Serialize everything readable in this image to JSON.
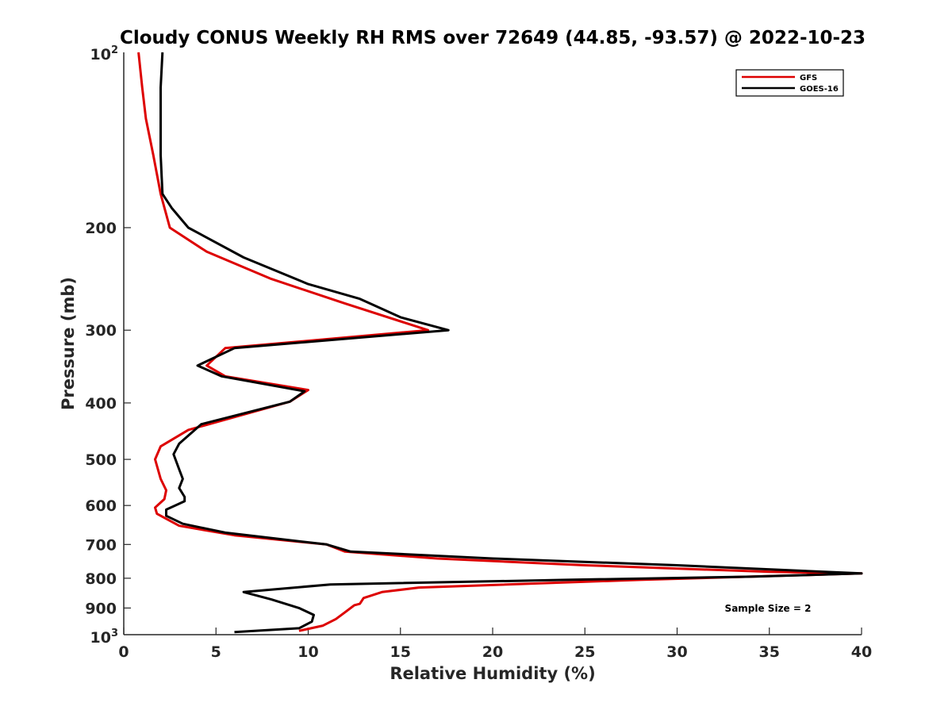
{
  "chart_data": {
    "type": "line",
    "title": "Cloudy CONUS Weekly RH RMS over 72649 (44.85, -93.57) @ 2022-10-23",
    "xlabel": "Relative Humidity (%)",
    "ylabel": "Pressure (mb)",
    "xlim": [
      0,
      40
    ],
    "ylim": [
      100,
      1000
    ],
    "y_scale": "log",
    "y_reversed": true,
    "x_ticks": [
      0,
      5,
      10,
      15,
      20,
      25,
      30,
      35,
      40
    ],
    "x_tick_labels": [
      "0",
      "5",
      "10",
      "15",
      "20",
      "25",
      "30",
      "35",
      "40"
    ],
    "y_ticks": [
      200,
      300,
      400,
      500,
      600,
      700,
      800,
      900
    ],
    "y_tick_labels": [
      "200",
      "300",
      "400",
      "500",
      "600",
      "700",
      "800",
      "900"
    ],
    "y_top_label": {
      "base": "10",
      "exp": "2"
    },
    "y_bottom_label": {
      "base": "10",
      "exp": "3"
    },
    "grid": false,
    "legend_position": "top-right",
    "annotation": "Sample Size = 2",
    "series": [
      {
        "name": "GFS",
        "color": "#dd0000",
        "points": [
          [
            0.8,
            100
          ],
          [
            1.0,
            115
          ],
          [
            1.2,
            130
          ],
          [
            1.6,
            150
          ],
          [
            2.0,
            175
          ],
          [
            2.5,
            200
          ],
          [
            4.5,
            220
          ],
          [
            8.0,
            245
          ],
          [
            12.0,
            270
          ],
          [
            16.5,
            300
          ],
          [
            5.5,
            322
          ],
          [
            4.5,
            345
          ],
          [
            5.5,
            360
          ],
          [
            10.0,
            380
          ],
          [
            9.0,
            398
          ],
          [
            3.5,
            445
          ],
          [
            2.0,
            475
          ],
          [
            1.7,
            500
          ],
          [
            2.0,
            540
          ],
          [
            2.3,
            565
          ],
          [
            2.2,
            585
          ],
          [
            1.7,
            605
          ],
          [
            1.8,
            620
          ],
          [
            3.0,
            650
          ],
          [
            6.0,
            675
          ],
          [
            11.0,
            700
          ],
          [
            12.0,
            720
          ],
          [
            17.0,
            740
          ],
          [
            25.0,
            760
          ],
          [
            35.0,
            780
          ],
          [
            40.0,
            785
          ],
          [
            28.0,
            805
          ],
          [
            16.0,
            830
          ],
          [
            14.0,
            845
          ],
          [
            13.0,
            865
          ],
          [
            12.8,
            885
          ],
          [
            12.5,
            890
          ],
          [
            12.0,
            915
          ],
          [
            11.5,
            940
          ],
          [
            10.8,
            965
          ],
          [
            9.5,
            985
          ]
        ]
      },
      {
        "name": "GOES-16",
        "color": "#000000",
        "points": [
          [
            2.1,
            100
          ],
          [
            2.0,
            115
          ],
          [
            2.0,
            130
          ],
          [
            2.0,
            150
          ],
          [
            2.1,
            175
          ],
          [
            2.6,
            185
          ],
          [
            3.5,
            200
          ],
          [
            6.5,
            225
          ],
          [
            10.0,
            250
          ],
          [
            12.8,
            265
          ],
          [
            15.0,
            285
          ],
          [
            17.6,
            300
          ],
          [
            6.0,
            322
          ],
          [
            4.0,
            345
          ],
          [
            5.3,
            360
          ],
          [
            9.8,
            382
          ],
          [
            9.0,
            398
          ],
          [
            4.2,
            435
          ],
          [
            3.0,
            470
          ],
          [
            2.7,
            490
          ],
          [
            3.0,
            520
          ],
          [
            3.2,
            540
          ],
          [
            3.0,
            560
          ],
          [
            3.3,
            580
          ],
          [
            3.3,
            590
          ],
          [
            2.3,
            610
          ],
          [
            2.3,
            625
          ],
          [
            3.2,
            645
          ],
          [
            5.5,
            668
          ],
          [
            11.0,
            700
          ],
          [
            12.3,
            720
          ],
          [
            20.0,
            740
          ],
          [
            30.0,
            760
          ],
          [
            40.0,
            785
          ],
          [
            34.0,
            795
          ],
          [
            24.0,
            805
          ],
          [
            11.2,
            820
          ],
          [
            6.5,
            845
          ],
          [
            8.0,
            870
          ],
          [
            9.5,
            900
          ],
          [
            10.3,
            925
          ],
          [
            10.2,
            950
          ],
          [
            9.5,
            975
          ],
          [
            6.0,
            990
          ]
        ]
      }
    ]
  }
}
